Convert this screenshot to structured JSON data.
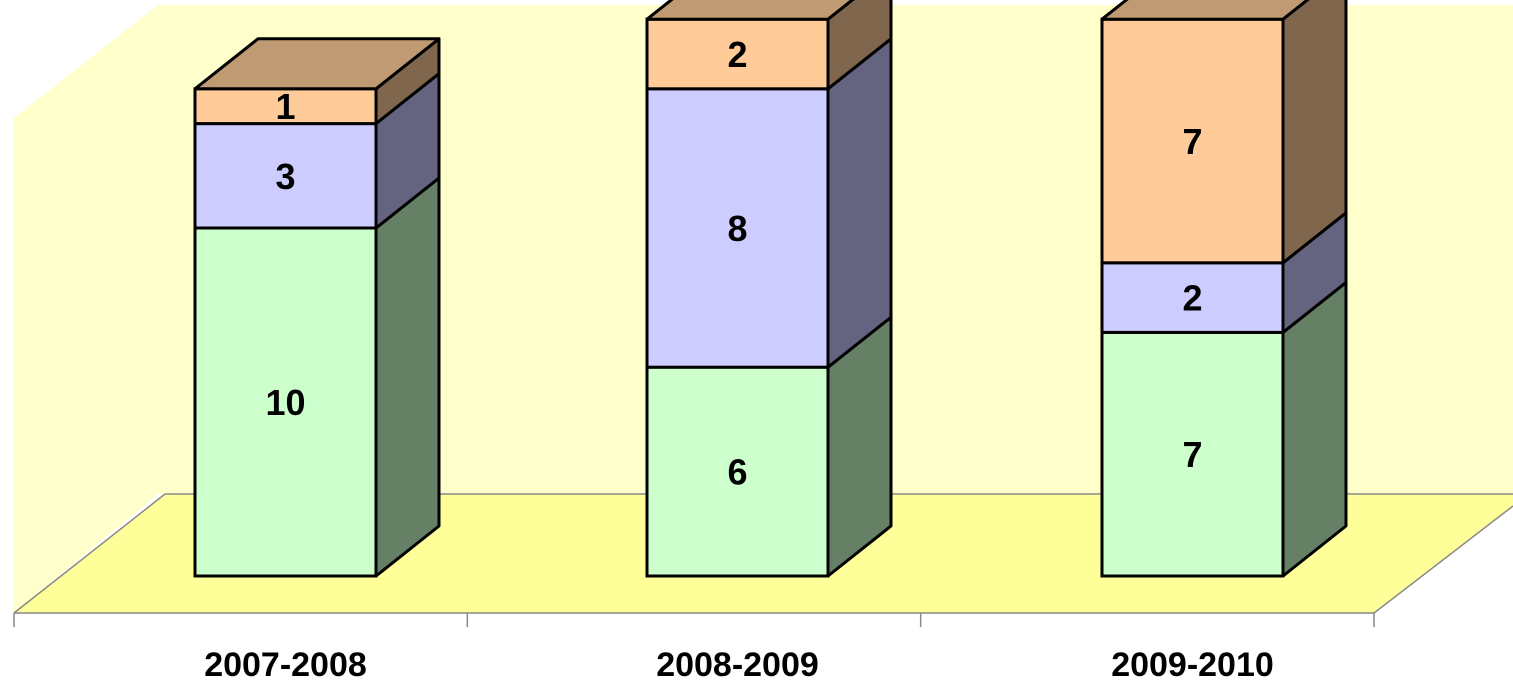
{
  "chart_data": {
    "type": "bar",
    "stacked": true,
    "three_d": true,
    "title": "",
    "xlabel": "",
    "ylabel": "",
    "categories": [
      "2007-2008",
      "2008-2009",
      "2009-2010"
    ],
    "series": [
      {
        "values": [
          10,
          6,
          7
        ],
        "color": "#CCFFCC",
        "side_color": "#668066"
      },
      {
        "values": [
          3,
          8,
          2
        ],
        "color": "#CCCCFF",
        "side_color": "#646480"
      },
      {
        "values": [
          1,
          2,
          7
        ],
        "color": "#FFCC99",
        "side_color": "#80664D"
      }
    ],
    "top_color": "#C09A73",
    "wall_color": "#FFFFCC",
    "floor_color": "#FFFF99",
    "ylim": [
      0,
      16
    ],
    "grid": false,
    "legend": "none",
    "data_labels": true
  }
}
